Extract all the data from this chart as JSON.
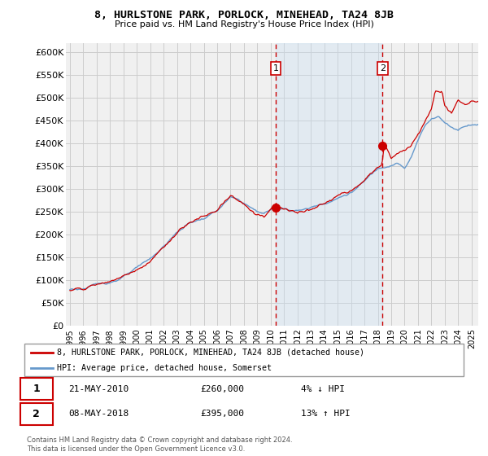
{
  "title": "8, HURLSTONE PARK, PORLOCK, MINEHEAD, TA24 8JB",
  "subtitle": "Price paid vs. HM Land Registry's House Price Index (HPI)",
  "ylabel_ticks": [
    "£0",
    "£50K",
    "£100K",
    "£150K",
    "£200K",
    "£250K",
    "£300K",
    "£350K",
    "£400K",
    "£450K",
    "£500K",
    "£550K",
    "£600K"
  ],
  "ylim": [
    0,
    620000
  ],
  "xlim_start": 1994.7,
  "xlim_end": 2025.5,
  "background_color": "#ffffff",
  "plot_bg_color": "#f0f0f0",
  "grid_color": "#ffffff",
  "hpi_color": "#6699cc",
  "price_color": "#cc0000",
  "vline_color": "#cc0000",
  "fill_color": "#ddeeff",
  "sale1_x": 2010.38,
  "sale1_y": 260000,
  "sale2_x": 2018.36,
  "sale2_y": 395000,
  "legend_label1": "8, HURLSTONE PARK, PORLOCK, MINEHEAD, TA24 8JB (detached house)",
  "legend_label2": "HPI: Average price, detached house, Somerset",
  "annotation1_label": "1",
  "annotation2_label": "2",
  "note1_num": "1",
  "note1_date": "21-MAY-2010",
  "note1_price": "£260,000",
  "note1_hpi": "4% ↓ HPI",
  "note2_num": "2",
  "note2_date": "08-MAY-2018",
  "note2_price": "£395,000",
  "note2_hpi": "13% ↑ HPI",
  "footer": "Contains HM Land Registry data © Crown copyright and database right 2024.\nThis data is licensed under the Open Government Licence v3.0."
}
